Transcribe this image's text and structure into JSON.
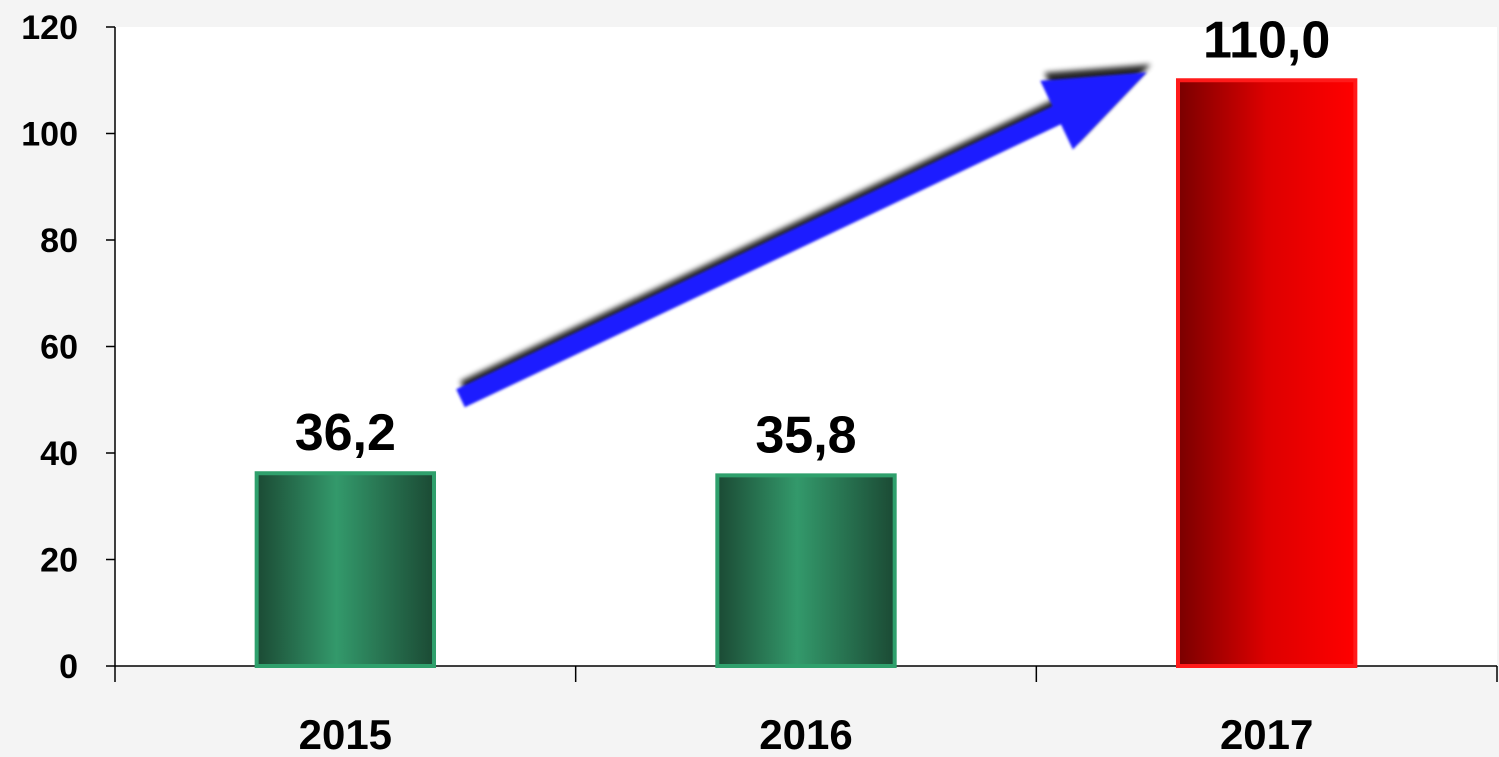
{
  "chart_data": {
    "type": "bar",
    "title": "",
    "xlabel": "",
    "ylabel": "",
    "categories": [
      "2015",
      "2016",
      "2017"
    ],
    "values": [
      36.2,
      35.8,
      110.0
    ],
    "value_labels": [
      "36,2",
      "35,8",
      "110,0"
    ],
    "ylim": [
      0,
      120
    ],
    "yticks": [
      0,
      20,
      40,
      60,
      80,
      100,
      120
    ],
    "grid": false,
    "legend": "none",
    "bar_colors": [
      "#2e8b62",
      "#2e8b62",
      "#e00000"
    ],
    "annotation": {
      "kind": "arrow",
      "from_category": "2015",
      "to_category": "2017",
      "color": "#1a1aff"
    }
  }
}
